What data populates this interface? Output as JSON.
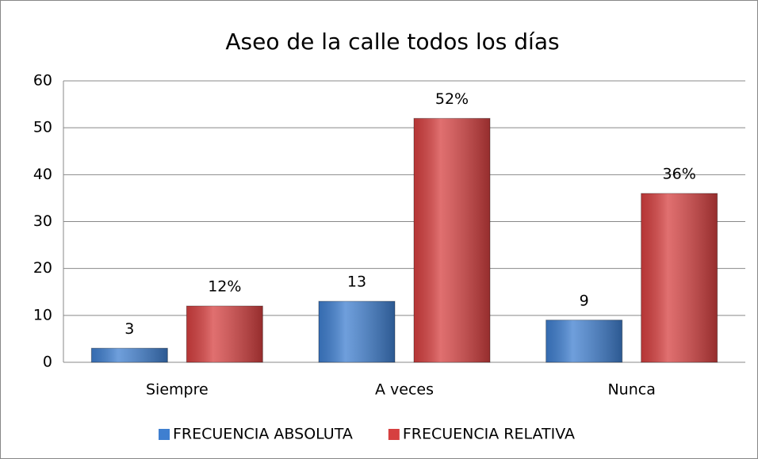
{
  "chart_data": {
    "type": "bar",
    "title": "Aseo de la calle todos los días",
    "categories": [
      "Siempre",
      "A veces",
      "Nunca"
    ],
    "series": [
      {
        "name": "FRECUENCIA ABSOLUTA",
        "color": "#3f7fd0",
        "values": [
          3,
          13,
          9
        ]
      },
      {
        "name": "FRECUENCIA RELATIVA",
        "color": "#d64040",
        "values": [
          12,
          52,
          36
        ],
        "value_labels": [
          "12%",
          "52%",
          "36%"
        ]
      }
    ],
    "ylim": [
      0,
      60
    ],
    "yticks": [
      0,
      10,
      20,
      30,
      40,
      50,
      60
    ],
    "grid": true,
    "legend": "bottom"
  }
}
